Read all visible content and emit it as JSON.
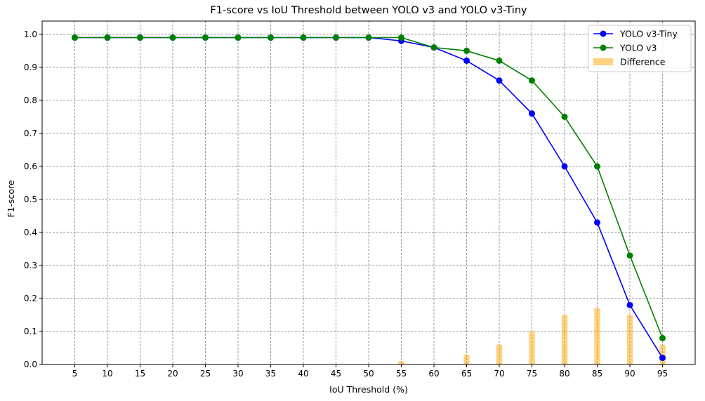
{
  "chart_data": {
    "type": "line",
    "title": "F1-score vs IoU Threshold between YOLO v3 and YOLO v3-Tiny",
    "xlabel": "IoU Threshold (%)",
    "ylabel": "F1-score",
    "x": [
      5,
      10,
      15,
      20,
      25,
      30,
      35,
      40,
      45,
      50,
      55,
      60,
      65,
      70,
      75,
      80,
      85,
      90,
      95
    ],
    "x_tick_labels": [
      "5",
      "10",
      "15",
      "20",
      "25",
      "30",
      "35",
      "40",
      "45",
      "50",
      "55",
      "60",
      "65",
      "70",
      "75",
      "80",
      "85",
      "90",
      "95"
    ],
    "y_tick_labels": [
      "0.0",
      "0.1",
      "0.2",
      "0.3",
      "0.4",
      "0.5",
      "0.6",
      "0.7",
      "0.8",
      "0.9",
      "1.0"
    ],
    "xlim": [
      0,
      100
    ],
    "ylim": [
      0,
      1.04
    ],
    "grid": true,
    "legend_position": "top-right",
    "series": [
      {
        "name": "YOLO v3-Tiny",
        "kind": "line",
        "color": "#0000ff",
        "values": [
          0.99,
          0.99,
          0.99,
          0.99,
          0.99,
          0.99,
          0.99,
          0.99,
          0.99,
          0.99,
          0.98,
          0.96,
          0.92,
          0.86,
          0.76,
          0.6,
          0.43,
          0.18,
          0.02
        ]
      },
      {
        "name": "YOLO v3",
        "kind": "line",
        "color": "#008000",
        "values": [
          0.99,
          0.99,
          0.99,
          0.99,
          0.99,
          0.99,
          0.99,
          0.99,
          0.99,
          0.99,
          0.99,
          0.96,
          0.95,
          0.92,
          0.86,
          0.75,
          0.6,
          0.33,
          0.08
        ]
      },
      {
        "name": "Difference",
        "kind": "bar",
        "color": "#ffa500",
        "values": [
          0,
          0,
          0,
          0,
          0,
          0,
          0,
          0,
          0,
          0,
          0.01,
          0,
          0.03,
          0.06,
          0.1,
          0.15,
          0.17,
          0.15,
          0.06
        ]
      }
    ]
  }
}
